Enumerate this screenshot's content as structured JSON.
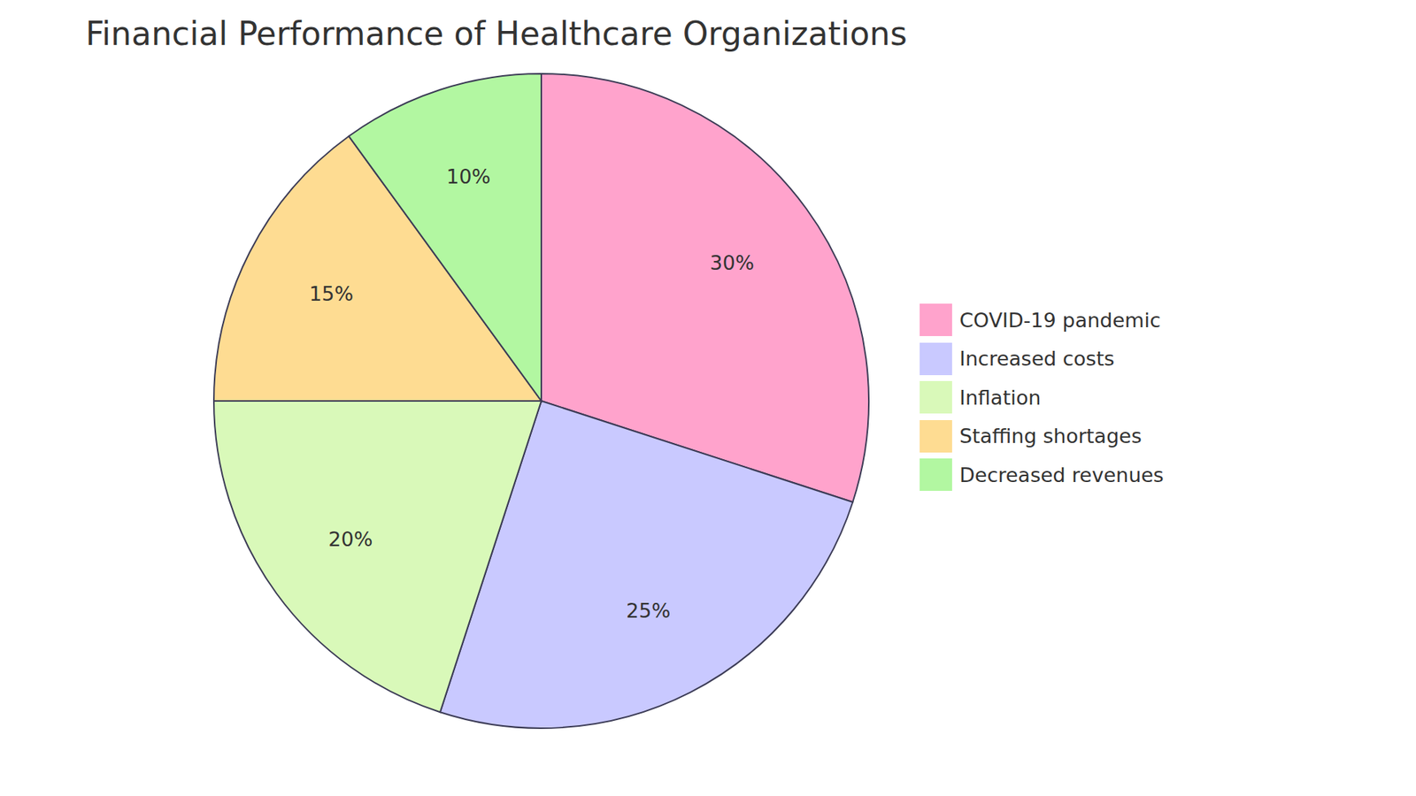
{
  "chart_data": {
    "type": "pie",
    "title": "Financial Performance of Healthcare Organizations",
    "categories": [
      "COVID-19 pandemic",
      "Increased costs",
      "Inflation",
      "Staffing shortages",
      "Decreased revenues"
    ],
    "values": [
      30,
      25,
      20,
      15,
      10
    ],
    "value_labels": [
      "30%",
      "25%",
      "20%",
      "15%",
      "10%"
    ],
    "colors": [
      "#ffa3cc",
      "#c9c9ff",
      "#d9f9b9",
      "#fedc92",
      "#b2f7a1"
    ],
    "data_labels": true,
    "legend": "right"
  }
}
